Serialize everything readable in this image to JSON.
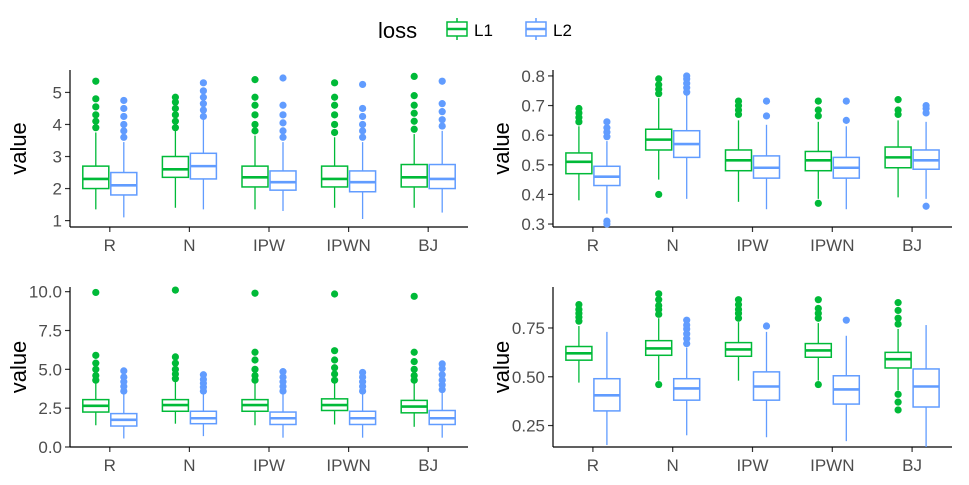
{
  "legend": {
    "title": "loss",
    "items": [
      {
        "label": "L1",
        "color": "#00BA38"
      },
      {
        "label": "L2",
        "color": "#619CFF"
      }
    ]
  },
  "chart_data": [
    {
      "type": "box",
      "ylabel": "value",
      "ylim": [
        0.8,
        5.7
      ],
      "yticks": [
        1,
        2,
        3,
        4,
        5
      ],
      "categories": [
        "R",
        "N",
        "IPW",
        "IPWN",
        "BJ"
      ],
      "series": [
        {
          "name": "L1",
          "color": "#00BA38",
          "boxes": [
            {
              "q1": 2.0,
              "median": 2.3,
              "q3": 2.7,
              "whisker_low": 1.35,
              "whisker_high": 3.75,
              "outliers": [
                3.9,
                4.1,
                4.3,
                4.55,
                4.8,
                5.35
              ]
            },
            {
              "q1": 2.35,
              "median": 2.6,
              "q3": 3.0,
              "whisker_low": 1.4,
              "whisker_high": 3.8,
              "outliers": [
                3.9,
                4.1,
                4.3,
                4.5,
                4.7,
                4.85
              ]
            },
            {
              "q1": 2.05,
              "median": 2.35,
              "q3": 2.7,
              "whisker_low": 1.35,
              "whisker_high": 3.65,
              "outliers": [
                3.8,
                4.0,
                4.3,
                4.6,
                4.85,
                5.4
              ]
            },
            {
              "q1": 2.05,
              "median": 2.3,
              "q3": 2.7,
              "whisker_low": 1.4,
              "whisker_high": 3.6,
              "outliers": [
                3.75,
                4.0,
                4.3,
                4.6,
                4.85,
                5.3
              ]
            },
            {
              "q1": 2.05,
              "median": 2.35,
              "q3": 2.75,
              "whisker_low": 1.4,
              "whisker_high": 3.7,
              "outliers": [
                3.85,
                4.1,
                4.35,
                4.6,
                4.9,
                5.5
              ]
            }
          ]
        },
        {
          "name": "L2",
          "color": "#619CFF",
          "boxes": [
            {
              "q1": 1.8,
              "median": 2.1,
              "q3": 2.5,
              "whisker_low": 1.1,
              "whisker_high": 3.45,
              "outliers": [
                3.6,
                3.8,
                4.0,
                4.25,
                4.5,
                4.75
              ]
            },
            {
              "q1": 2.3,
              "median": 2.7,
              "q3": 3.1,
              "whisker_low": 1.35,
              "whisker_high": 4.15,
              "outliers": [
                4.25,
                4.45,
                4.65,
                4.85,
                5.05,
                5.3
              ]
            },
            {
              "q1": 1.95,
              "median": 2.2,
              "q3": 2.55,
              "whisker_low": 1.3,
              "whisker_high": 3.45,
              "outliers": [
                3.6,
                3.8,
                4.05,
                4.3,
                4.6,
                5.45
              ]
            },
            {
              "q1": 1.9,
              "median": 2.2,
              "q3": 2.55,
              "whisker_low": 1.05,
              "whisker_high": 3.45,
              "outliers": [
                3.6,
                3.8,
                4.0,
                4.25,
                4.5,
                5.25
              ]
            },
            {
              "q1": 2.0,
              "median": 2.3,
              "q3": 2.75,
              "whisker_low": 1.25,
              "whisker_high": 3.8,
              "outliers": [
                3.95,
                4.15,
                4.4,
                4.65,
                5.35
              ]
            }
          ]
        }
      ]
    },
    {
      "type": "box",
      "ylabel": "value",
      "ylim": [
        0.29,
        0.82
      ],
      "yticks": [
        0.3,
        0.4,
        0.5,
        0.6,
        0.7,
        0.8
      ],
      "categories": [
        "R",
        "N",
        "IPW",
        "IPWN",
        "BJ"
      ],
      "series": [
        {
          "name": "L1",
          "color": "#00BA38",
          "boxes": [
            {
              "q1": 0.47,
              "median": 0.51,
              "q3": 0.54,
              "whisker_low": 0.38,
              "whisker_high": 0.63,
              "outliers": [
                0.645,
                0.66,
                0.675,
                0.69
              ]
            },
            {
              "q1": 0.55,
              "median": 0.585,
              "q3": 0.62,
              "whisker_low": 0.45,
              "whisker_high": 0.725,
              "outliers": [
                0.4,
                0.74,
                0.755,
                0.77,
                0.79
              ]
            },
            {
              "q1": 0.48,
              "median": 0.515,
              "q3": 0.55,
              "whisker_low": 0.375,
              "whisker_high": 0.65,
              "outliers": [
                0.67,
                0.685,
                0.7,
                0.715
              ]
            },
            {
              "q1": 0.48,
              "median": 0.515,
              "q3": 0.545,
              "whisker_low": 0.385,
              "whisker_high": 0.645,
              "outliers": [
                0.37,
                0.665,
                0.685,
                0.715
              ]
            },
            {
              "q1": 0.49,
              "median": 0.525,
              "q3": 0.56,
              "whisker_low": 0.39,
              "whisker_high": 0.65,
              "outliers": [
                0.67,
                0.685,
                0.72
              ]
            }
          ]
        },
        {
          "name": "L2",
          "color": "#619CFF",
          "boxes": [
            {
              "q1": 0.43,
              "median": 0.46,
              "q3": 0.495,
              "whisker_low": 0.335,
              "whisker_high": 0.58,
              "outliers": [
                0.3,
                0.31,
                0.595,
                0.61,
                0.625,
                0.645
              ]
            },
            {
              "q1": 0.525,
              "median": 0.57,
              "q3": 0.615,
              "whisker_low": 0.385,
              "whisker_high": 0.735,
              "outliers": [
                0.745,
                0.76,
                0.775,
                0.79,
                0.8
              ]
            },
            {
              "q1": 0.455,
              "median": 0.49,
              "q3": 0.53,
              "whisker_low": 0.35,
              "whisker_high": 0.635,
              "outliers": [
                0.665,
                0.715
              ]
            },
            {
              "q1": 0.455,
              "median": 0.49,
              "q3": 0.525,
              "whisker_low": 0.35,
              "whisker_high": 0.63,
              "outliers": [
                0.65,
                0.715
              ]
            },
            {
              "q1": 0.485,
              "median": 0.515,
              "q3": 0.55,
              "whisker_low": 0.385,
              "whisker_high": 0.645,
              "outliers": [
                0.36,
                0.675,
                0.69,
                0.7
              ]
            }
          ]
        }
      ]
    },
    {
      "type": "box",
      "ylabel": "value",
      "ylim": [
        0.0,
        10.3
      ],
      "yticks": [
        0.0,
        2.5,
        5.0,
        7.5,
        10.0
      ],
      "yticklabels": [
        "0.0",
        "2.5",
        "5.0",
        "7.5",
        "10.0"
      ],
      "categories": [
        "R",
        "N",
        "IPW",
        "IPWN",
        "BJ"
      ],
      "series": [
        {
          "name": "L1",
          "color": "#00BA38",
          "boxes": [
            {
              "q1": 2.25,
              "median": 2.65,
              "q3": 3.05,
              "whisker_low": 1.4,
              "whisker_high": 4.1,
              "outliers": [
                4.3,
                4.6,
                5.0,
                5.4,
                5.9,
                9.95
              ]
            },
            {
              "q1": 2.3,
              "median": 2.7,
              "q3": 3.05,
              "whisker_low": 1.5,
              "whisker_high": 4.2,
              "outliers": [
                4.4,
                4.7,
                5.0,
                5.4,
                5.8,
                10.1
              ]
            },
            {
              "q1": 2.3,
              "median": 2.7,
              "q3": 3.05,
              "whisker_low": 1.4,
              "whisker_high": 4.1,
              "outliers": [
                4.3,
                4.6,
                5.0,
                5.6,
                6.1,
                9.9
              ]
            },
            {
              "q1": 2.35,
              "median": 2.7,
              "q3": 3.1,
              "whisker_low": 1.45,
              "whisker_high": 4.1,
              "outliers": [
                4.3,
                4.7,
                5.1,
                5.6,
                6.2,
                9.85
              ]
            },
            {
              "q1": 2.2,
              "median": 2.6,
              "q3": 3.0,
              "whisker_low": 1.3,
              "whisker_high": 4.1,
              "outliers": [
                4.3,
                4.6,
                5.0,
                5.5,
                6.1,
                9.7
              ]
            }
          ]
        },
        {
          "name": "L2",
          "color": "#619CFF",
          "boxes": [
            {
              "q1": 1.35,
              "median": 1.75,
              "q3": 2.15,
              "whisker_low": 0.55,
              "whisker_high": 3.4,
              "outliers": [
                3.6,
                3.9,
                4.2,
                4.5,
                4.9
              ]
            },
            {
              "q1": 1.5,
              "median": 1.85,
              "q3": 2.3,
              "whisker_low": 0.7,
              "whisker_high": 3.4,
              "outliers": [
                3.6,
                3.85,
                4.1,
                4.35,
                4.65
              ]
            },
            {
              "q1": 1.45,
              "median": 1.85,
              "q3": 2.25,
              "whisker_low": 0.6,
              "whisker_high": 3.4,
              "outliers": [
                3.6,
                3.9,
                4.2,
                4.5,
                4.85
              ]
            },
            {
              "q1": 1.45,
              "median": 1.85,
              "q3": 2.3,
              "whisker_low": 0.6,
              "whisker_high": 3.4,
              "outliers": [
                3.6,
                3.9,
                4.2,
                4.5,
                4.8
              ]
            },
            {
              "q1": 1.45,
              "median": 1.85,
              "q3": 2.35,
              "whisker_low": 0.6,
              "whisker_high": 3.5,
              "outliers": [
                3.7,
                4.0,
                4.3,
                4.65,
                5.05,
                5.35
              ]
            }
          ]
        }
      ]
    },
    {
      "type": "box",
      "ylabel": "value",
      "ylim": [
        0.14,
        0.96
      ],
      "yticks": [
        0.25,
        0.5,
        0.75
      ],
      "yticklabels": [
        "0.25",
        "0.50",
        "0.75"
      ],
      "categories": [
        "R",
        "N",
        "IPW",
        "IPWN",
        "BJ"
      ],
      "series": [
        {
          "name": "L1",
          "color": "#00BA38",
          "boxes": [
            {
              "q1": 0.585,
              "median": 0.62,
              "q3": 0.655,
              "whisker_low": 0.47,
              "whisker_high": 0.76,
              "outliers": [
                0.785,
                0.805,
                0.825,
                0.845,
                0.87
              ]
            },
            {
              "q1": 0.61,
              "median": 0.645,
              "q3": 0.685,
              "whisker_low": 0.48,
              "whisker_high": 0.8,
              "outliers": [
                0.46,
                0.82,
                0.845,
                0.865,
                0.895,
                0.925
              ]
            },
            {
              "q1": 0.605,
              "median": 0.64,
              "q3": 0.675,
              "whisker_low": 0.48,
              "whisker_high": 0.78,
              "outliers": [
                0.8,
                0.825,
                0.845,
                0.87,
                0.895
              ]
            },
            {
              "q1": 0.6,
              "median": 0.635,
              "q3": 0.67,
              "whisker_low": 0.48,
              "whisker_high": 0.775,
              "outliers": [
                0.46,
                0.8,
                0.825,
                0.85,
                0.895
              ]
            },
            {
              "q1": 0.545,
              "median": 0.59,
              "q3": 0.625,
              "whisker_low": 0.43,
              "whisker_high": 0.745,
              "outliers": [
                0.33,
                0.37,
                0.41,
                0.77,
                0.8,
                0.84,
                0.88
              ]
            }
          ]
        },
        {
          "name": "L2",
          "color": "#619CFF",
          "boxes": [
            {
              "q1": 0.325,
              "median": 0.405,
              "q3": 0.49,
              "whisker_low": 0.15,
              "whisker_high": 0.73,
              "outliers": []
            },
            {
              "q1": 0.38,
              "median": 0.44,
              "q3": 0.49,
              "whisker_low": 0.2,
              "whisker_high": 0.65,
              "outliers": [
                0.67,
                0.695,
                0.72,
                0.745,
                0.765,
                0.79
              ]
            },
            {
              "q1": 0.38,
              "median": 0.45,
              "q3": 0.525,
              "whisker_low": 0.19,
              "whisker_high": 0.73,
              "outliers": [
                0.76
              ]
            },
            {
              "q1": 0.36,
              "median": 0.435,
              "q3": 0.505,
              "whisker_low": 0.17,
              "whisker_high": 0.71,
              "outliers": [
                0.79
              ]
            },
            {
              "q1": 0.345,
              "median": 0.45,
              "q3": 0.54,
              "whisker_low": 0.14,
              "whisker_high": 0.765,
              "outliers": []
            }
          ]
        }
      ]
    }
  ]
}
